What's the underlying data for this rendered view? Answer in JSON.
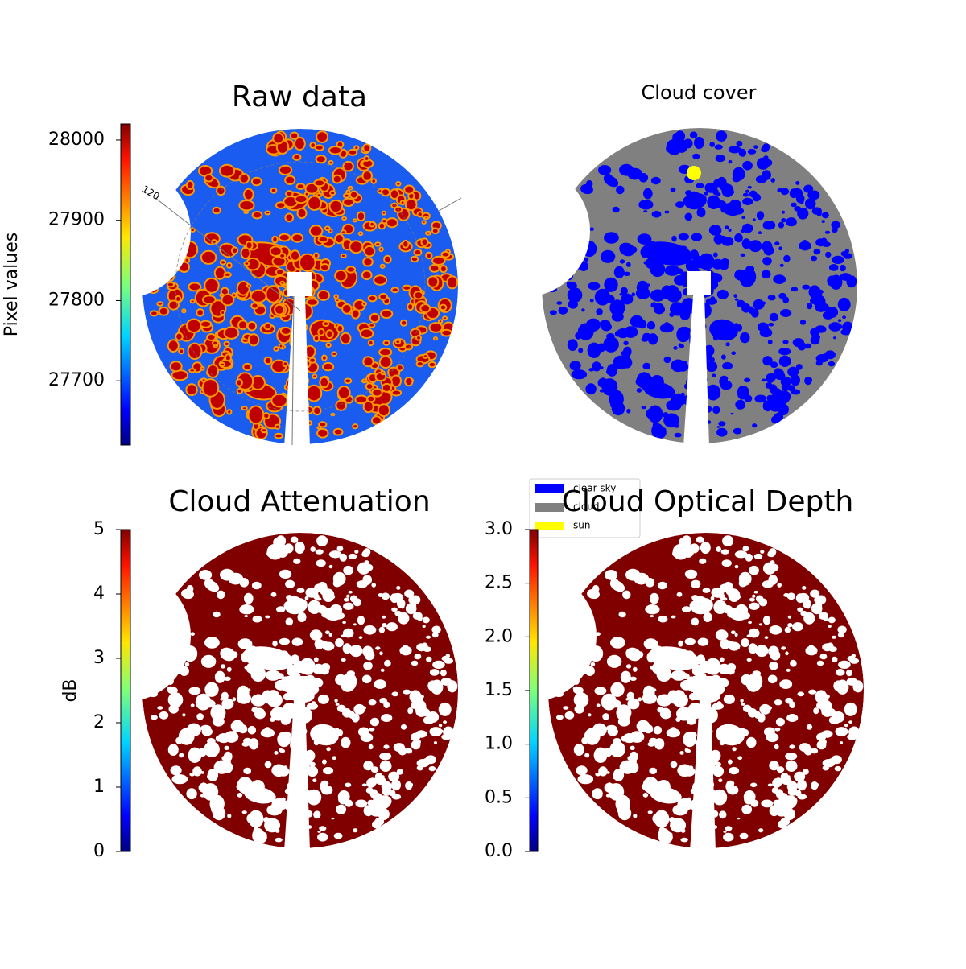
{
  "chart_data": [
    {
      "type": "image",
      "title": "Raw data",
      "annotation": "120",
      "colorbar": {
        "label": "Pixel values",
        "lim": [
          27620,
          28020
        ],
        "ticks": [
          27700,
          27800,
          27900,
          28000
        ]
      }
    },
    {
      "type": "image",
      "title": "Cloud cover",
      "legend": [
        {
          "name": "clear sky",
          "color": "#0000ff"
        },
        {
          "name": "cloud",
          "color": "#808080"
        },
        {
          "name": "sun",
          "color": "#ffff00"
        }
      ]
    },
    {
      "type": "image",
      "title": "Cloud Attenuation",
      "colorbar": {
        "label": "dB",
        "lim": [
          0,
          5
        ],
        "ticks": [
          0,
          1,
          2,
          3,
          4,
          5
        ]
      }
    },
    {
      "type": "image",
      "title": "Cloud Optical Depth",
      "colorbar": {
        "lim": [
          0,
          3
        ],
        "ticks": [
          {
            "value": 0,
            "label": "0.0"
          },
          0.5,
          {
            "value": 1,
            "label": "1.0"
          },
          1.5,
          {
            "value": 2,
            "label": "2.0"
          },
          2.5,
          {
            "value": 3,
            "label": "3.0"
          }
        ]
      }
    }
  ]
}
